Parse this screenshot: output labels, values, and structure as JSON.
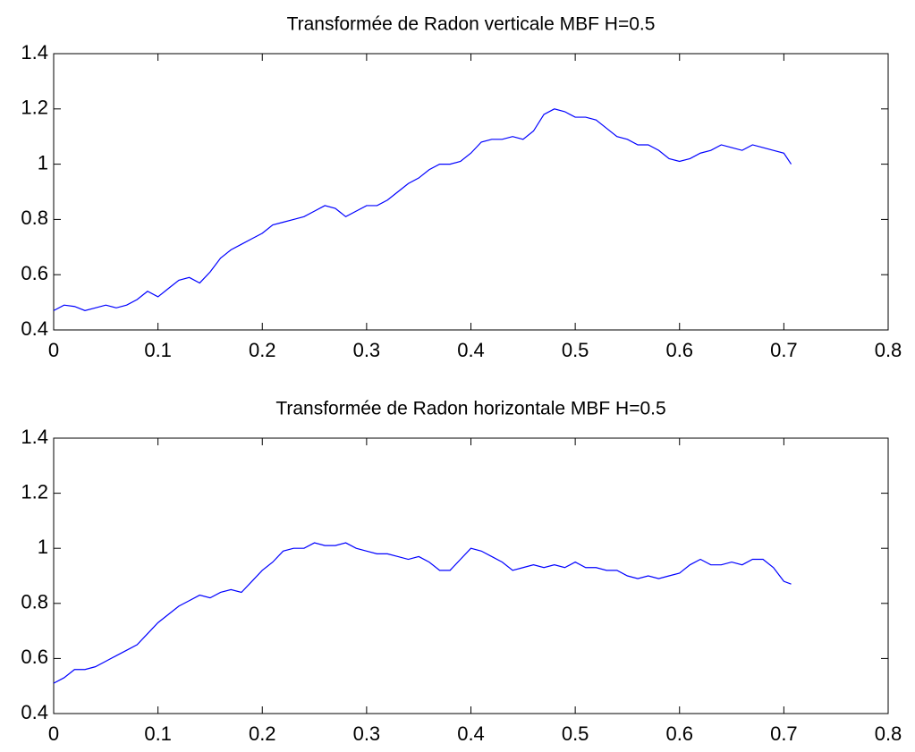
{
  "chart_data": [
    {
      "type": "line",
      "title": "Transformée de Radon verticale MBF H=0.5",
      "x": [
        0,
        0.01,
        0.02,
        0.03,
        0.04,
        0.05,
        0.06,
        0.07,
        0.08,
        0.09,
        0.1,
        0.11,
        0.12,
        0.13,
        0.14,
        0.15,
        0.16,
        0.17,
        0.18,
        0.19,
        0.2,
        0.21,
        0.22,
        0.23,
        0.24,
        0.25,
        0.26,
        0.27,
        0.28,
        0.29,
        0.3,
        0.31,
        0.32,
        0.33,
        0.34,
        0.35,
        0.36,
        0.37,
        0.38,
        0.39,
        0.4,
        0.41,
        0.42,
        0.43,
        0.44,
        0.45,
        0.46,
        0.47,
        0.48,
        0.49,
        0.5,
        0.51,
        0.52,
        0.53,
        0.54,
        0.55,
        0.56,
        0.57,
        0.58,
        0.59,
        0.6,
        0.61,
        0.62,
        0.63,
        0.64,
        0.65,
        0.66,
        0.67,
        0.68,
        0.69,
        0.7,
        0.707
      ],
      "series": [
        {
          "color": "#0000ff",
          "values": [
            0.47,
            0.49,
            0.485,
            0.47,
            0.48,
            0.49,
            0.48,
            0.49,
            0.51,
            0.54,
            0.52,
            0.55,
            0.58,
            0.59,
            0.57,
            0.61,
            0.66,
            0.69,
            0.71,
            0.73,
            0.75,
            0.78,
            0.79,
            0.8,
            0.81,
            0.83,
            0.85,
            0.84,
            0.81,
            0.83,
            0.85,
            0.85,
            0.87,
            0.9,
            0.93,
            0.95,
            0.98,
            1.0,
            1.0,
            1.01,
            1.04,
            1.08,
            1.09,
            1.09,
            1.1,
            1.09,
            1.12,
            1.18,
            1.2,
            1.19,
            1.17,
            1.17,
            1.16,
            1.13,
            1.1,
            1.09,
            1.07,
            1.07,
            1.05,
            1.02,
            1.01,
            1.02,
            1.04,
            1.05,
            1.07,
            1.06,
            1.05,
            1.07,
            1.06,
            1.05,
            1.04,
            1.0
          ]
        }
      ],
      "xlim": [
        0,
        0.8
      ],
      "ylim": [
        0.4,
        1.4
      ],
      "xticks": [
        0,
        0.1,
        0.2,
        0.3,
        0.4,
        0.5,
        0.6,
        0.7,
        0.8
      ],
      "yticks": [
        0.4,
        0.6,
        0.8,
        1,
        1.2,
        1.4
      ]
    },
    {
      "type": "line",
      "title": "Transformée de Radon horizontale MBF H=0.5",
      "x": [
        0,
        0.01,
        0.02,
        0.03,
        0.04,
        0.05,
        0.06,
        0.07,
        0.08,
        0.09,
        0.1,
        0.11,
        0.12,
        0.13,
        0.14,
        0.15,
        0.16,
        0.17,
        0.18,
        0.19,
        0.2,
        0.21,
        0.22,
        0.23,
        0.24,
        0.25,
        0.26,
        0.27,
        0.28,
        0.29,
        0.3,
        0.31,
        0.32,
        0.33,
        0.34,
        0.35,
        0.36,
        0.37,
        0.38,
        0.39,
        0.4,
        0.41,
        0.42,
        0.43,
        0.44,
        0.45,
        0.46,
        0.47,
        0.48,
        0.49,
        0.5,
        0.51,
        0.52,
        0.53,
        0.54,
        0.55,
        0.56,
        0.57,
        0.58,
        0.59,
        0.6,
        0.61,
        0.62,
        0.63,
        0.64,
        0.65,
        0.66,
        0.67,
        0.68,
        0.69,
        0.7,
        0.707
      ],
      "series": [
        {
          "color": "#0000ff",
          "values": [
            0.51,
            0.53,
            0.56,
            0.56,
            0.57,
            0.59,
            0.61,
            0.63,
            0.65,
            0.69,
            0.73,
            0.76,
            0.79,
            0.81,
            0.83,
            0.82,
            0.84,
            0.85,
            0.84,
            0.88,
            0.92,
            0.95,
            0.99,
            1.0,
            1.0,
            1.02,
            1.01,
            1.01,
            1.02,
            1.0,
            0.99,
            0.98,
            0.98,
            0.97,
            0.96,
            0.97,
            0.95,
            0.92,
            0.92,
            0.96,
            1.0,
            0.99,
            0.97,
            0.95,
            0.92,
            0.93,
            0.94,
            0.93,
            0.94,
            0.93,
            0.95,
            0.93,
            0.93,
            0.92,
            0.92,
            0.9,
            0.89,
            0.9,
            0.89,
            0.9,
            0.91,
            0.94,
            0.96,
            0.94,
            0.94,
            0.95,
            0.94,
            0.96,
            0.96,
            0.93,
            0.88,
            0.87
          ]
        }
      ],
      "xlim": [
        0,
        0.8
      ],
      "ylim": [
        0.4,
        1.4
      ],
      "xticks": [
        0,
        0.1,
        0.2,
        0.3,
        0.4,
        0.5,
        0.6,
        0.7,
        0.8
      ],
      "yticks": [
        0.4,
        0.6,
        0.8,
        1,
        1.2,
        1.4
      ]
    }
  ]
}
